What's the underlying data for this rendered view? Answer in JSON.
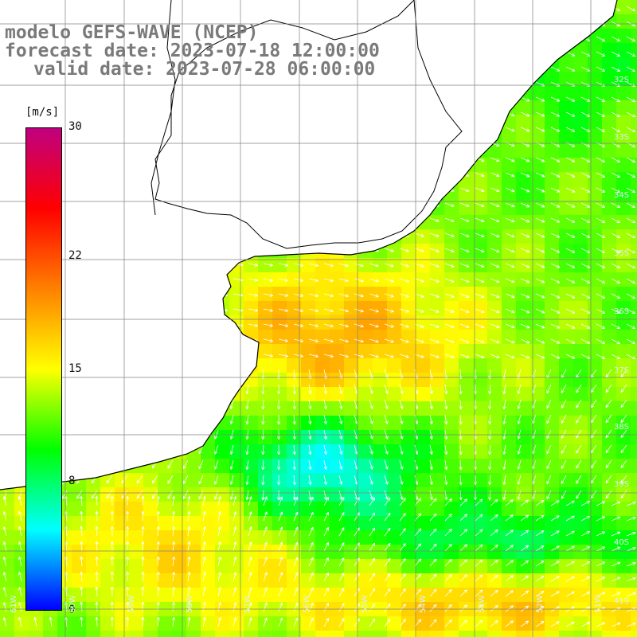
{
  "title": {
    "model": "modelo GEFS-WAVE (NCEP)",
    "forecast": "forecast date: 2023-07-18 12:00:00",
    "valid": "valid date: 2023-07-28 06:00:00"
  },
  "colorbar": {
    "unit": "[m/s]",
    "ticks": [
      "30",
      "22",
      "15",
      "8",
      "0"
    ],
    "tick_values": [
      30,
      22,
      15,
      8,
      0
    ],
    "colors": [
      "#0000ff",
      "#00ffff",
      "#00ff00",
      "#ffff00",
      "#ff8000",
      "#ff0000",
      "#c00080"
    ]
  },
  "lat_labels": [
    "32S",
    "33S",
    "34S",
    "35S",
    "36S",
    "37S",
    "38S",
    "39S",
    "40S",
    "41S"
  ],
  "lon_labels": [
    "61W",
    "60W",
    "59W",
    "58W",
    "57W",
    "56W",
    "55W",
    "54W",
    "53W",
    "52W",
    "51W"
  ],
  "colors": {
    "land": "#ffffff",
    "grid": "#808080",
    "coast": "#000000",
    "arrows": "#ffffff"
  }
}
